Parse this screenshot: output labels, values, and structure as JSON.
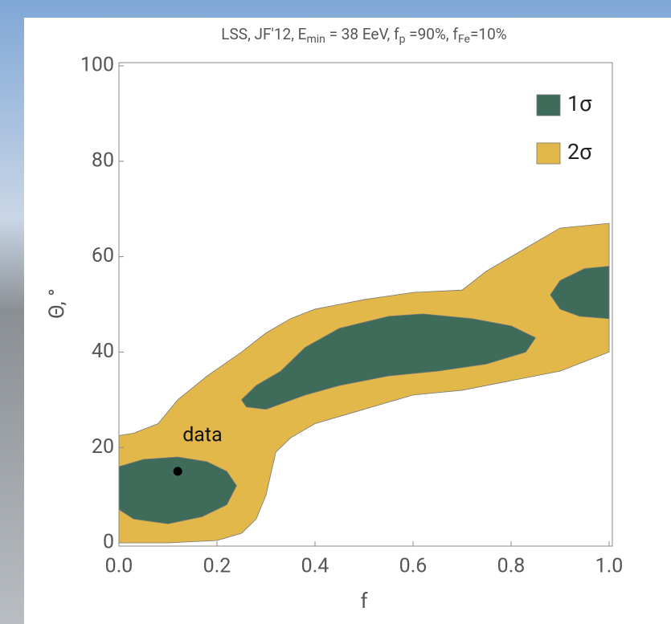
{
  "chart_data": {
    "type": "contour",
    "title": [
      "LSS, JF'12, E",
      "min",
      " = 38 EeV, f",
      "p",
      " =90%, f",
      "Fe",
      "=10%"
    ],
    "x_label": "f",
    "y_label": "Θ, °",
    "xlim": [
      0,
      1
    ],
    "ylim": [
      0,
      100
    ],
    "xticks": [
      {
        "value": 0,
        "label": "0.0"
      },
      {
        "value": 0.2,
        "label": "0.2"
      },
      {
        "value": 0.4,
        "label": "0.4"
      },
      {
        "value": 0.6,
        "label": "0.6"
      },
      {
        "value": 0.8,
        "label": "0.8"
      },
      {
        "value": 1,
        "label": "1.0"
      }
    ],
    "yticks": [
      0,
      20,
      40,
      60,
      80,
      100
    ],
    "legend_position": "upper right",
    "series": [
      {
        "name": "2σ",
        "color": "#e3b84b",
        "polygons": [
          {
            "x": [
              0,
              0.03,
              0.08,
              0.12,
              0.18,
              0.25,
              0.3,
              0.35,
              0.4,
              0.5,
              0.6,
              0.7,
              0.75,
              0.8,
              0.85,
              0.9,
              1.0,
              1.0,
              0.95,
              0.9,
              0.8,
              0.7,
              0.6,
              0.5,
              0.4,
              0.35,
              0.32,
              0.3,
              0.28,
              0.25,
              0.2,
              0.1,
              0
            ],
            "y": [
              22.5,
              23,
              25,
              30,
              35,
              40,
              44,
              47,
              49,
              51,
              52.5,
              53,
              57,
              60,
              63,
              66,
              67,
              40,
              38,
              36,
              34,
              32,
              31,
              28,
              25,
              22,
              19,
              10,
              5,
              2,
              0.5,
              0,
              0
            ]
          }
        ]
      },
      {
        "name": "1σ",
        "color": "#3f6b5b",
        "polygons": [
          {
            "x": [
              0,
              0.05,
              0.12,
              0.18,
              0.22,
              0.24,
              0.22,
              0.17,
              0.1,
              0.03,
              0
            ],
            "y": [
              16,
              17.5,
              18,
              17,
              15,
              12,
              8,
              5.5,
              4,
              5,
              7
            ]
          },
          {
            "x": [
              0.25,
              0.28,
              0.33,
              0.38,
              0.45,
              0.55,
              0.62,
              0.72,
              0.8,
              0.85,
              0.83,
              0.75,
              0.65,
              0.55,
              0.45,
              0.38,
              0.3,
              0.26
            ],
            "y": [
              30,
              33,
              36,
              41,
              45,
              47.5,
              48,
              47,
              45.5,
              43,
              40,
              37.5,
              36,
              35,
              33,
              31,
              28,
              28.5
            ]
          },
          {
            "x": [
              1.0,
              0.95,
              0.9,
              0.88,
              0.9,
              0.94,
              1.0
            ],
            "y": [
              58,
              57.5,
              55,
              52,
              49,
              47.5,
              47
            ]
          }
        ]
      }
    ],
    "points": [
      {
        "label": "data",
        "x": 0.12,
        "y": 15,
        "color": "#000000"
      }
    ]
  }
}
